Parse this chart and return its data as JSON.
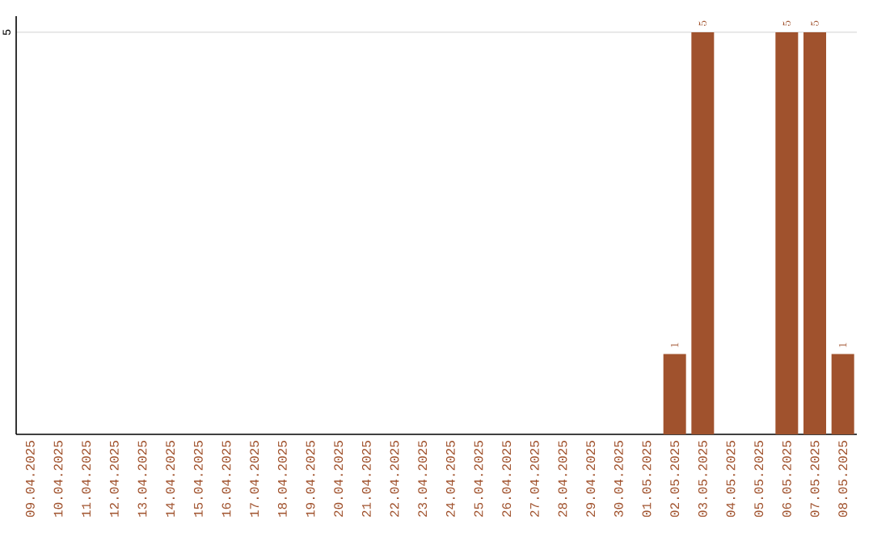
{
  "chart_data": {
    "type": "bar",
    "categories": [
      "09.04.2025",
      "10.04.2025",
      "11.04.2025",
      "12.04.2025",
      "13.04.2025",
      "14.04.2025",
      "15.04.2025",
      "16.04.2025",
      "17.04.2025",
      "18.04.2025",
      "19.04.2025",
      "20.04.2025",
      "21.04.2025",
      "22.04.2025",
      "23.04.2025",
      "24.04.2025",
      "25.04.2025",
      "26.04.2025",
      "27.04.2025",
      "28.04.2025",
      "29.04.2025",
      "30.04.2025",
      "01.05.2025",
      "02.05.2025",
      "03.05.2025",
      "04.05.2025",
      "05.05.2025",
      "06.05.2025",
      "07.05.2025",
      "08.05.2025"
    ],
    "values": [
      null,
      null,
      null,
      null,
      null,
      null,
      null,
      null,
      null,
      null,
      null,
      null,
      null,
      null,
      null,
      null,
      null,
      null,
      null,
      null,
      null,
      null,
      null,
      1,
      5,
      null,
      null,
      5,
      5,
      1
    ],
    "color": "#a0522d",
    "ylim": [
      0,
      5.2
    ],
    "yticks": [
      5
    ],
    "grid": "y",
    "data_labels": true
  }
}
